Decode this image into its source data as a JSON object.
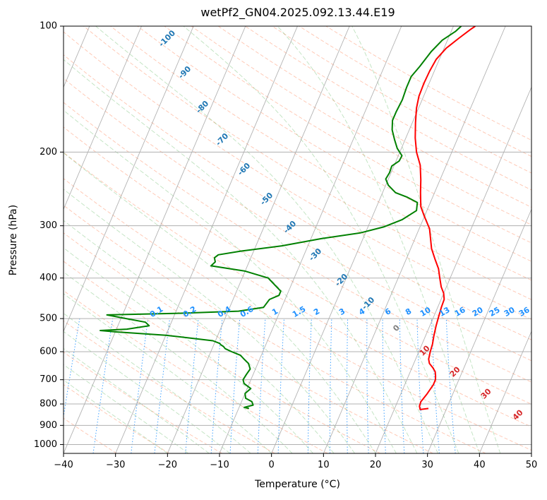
{
  "chart_data": {
    "type": "line",
    "title": "wetPf2_GN04.2025.092.13.44.E19",
    "xlabel": "Temperature (°C)",
    "ylabel": "Pressure (hPa)",
    "xlim": [
      -40,
      50
    ],
    "ylim": [
      1050,
      100
    ],
    "y_scale": "log",
    "x_ticks": [
      -40,
      -30,
      -20,
      -10,
      0,
      10,
      20,
      30,
      40,
      50
    ],
    "y_ticks": [
      100,
      200,
      300,
      400,
      500,
      600,
      700,
      800,
      900,
      1000
    ],
    "grid": true,
    "skew": true,
    "series": [
      {
        "role": "temperature",
        "color": "#ff0000",
        "points": [
          [
            26.5,
            820
          ],
          [
            25.0,
            825
          ],
          [
            24.6,
            810
          ],
          [
            24.5,
            790
          ],
          [
            25.0,
            760
          ],
          [
            25.5,
            720
          ],
          [
            25.5,
            700
          ],
          [
            25.2,
            685
          ],
          [
            24.8,
            670
          ],
          [
            24.0,
            655
          ],
          [
            23.0,
            640
          ],
          [
            22.5,
            625
          ],
          [
            22.2,
            600
          ],
          [
            22.0,
            575
          ],
          [
            21.6,
            550
          ],
          [
            21.2,
            520
          ],
          [
            20.9,
            490
          ],
          [
            20.7,
            470
          ],
          [
            20.6,
            450
          ],
          [
            20.0,
            435
          ],
          [
            19.0,
            420
          ],
          [
            18.0,
            400
          ],
          [
            17.0,
            380
          ],
          [
            15.5,
            360
          ],
          [
            14.0,
            340
          ],
          [
            13.0,
            322
          ],
          [
            12.0,
            305
          ],
          [
            10.0,
            285
          ],
          [
            8.5,
            270
          ],
          [
            7.3,
            250
          ],
          [
            6.3,
            233
          ],
          [
            5.0,
            215
          ],
          [
            3.2,
            200
          ],
          [
            1.8,
            185
          ],
          [
            0.6,
            170
          ],
          [
            -0.4,
            157
          ],
          [
            -0.9,
            147
          ],
          [
            -1.0,
            137
          ],
          [
            -0.9,
            128
          ],
          [
            -0.6,
            120
          ],
          [
            0.4,
            113
          ],
          [
            2.0,
            107
          ],
          [
            3.5,
            102
          ],
          [
            4.2,
            100
          ]
        ]
      },
      {
        "role": "dewpoint",
        "color": "#008000",
        "points": [
          [
            -8.0,
            820
          ],
          [
            -9.0,
            815
          ],
          [
            -7.5,
            805
          ],
          [
            -8.0,
            790
          ],
          [
            -9.5,
            775
          ],
          [
            -10.0,
            755
          ],
          [
            -9.3,
            735
          ],
          [
            -11.0,
            715
          ],
          [
            -11.5,
            700
          ],
          [
            -11.3,
            680
          ],
          [
            -11.0,
            660
          ],
          [
            -11.8,
            640
          ],
          [
            -13.0,
            625
          ],
          [
            -14.0,
            612
          ],
          [
            -16.0,
            600
          ],
          [
            -17.5,
            590
          ],
          [
            -18.0,
            583
          ],
          [
            -18.6,
            578
          ],
          [
            -19.0,
            573
          ],
          [
            -20.5,
            565
          ],
          [
            -30.0,
            548
          ],
          [
            -40.0,
            538
          ],
          [
            -43.0,
            534
          ],
          [
            -38.0,
            530
          ],
          [
            -34.0,
            520
          ],
          [
            -35.0,
            510
          ],
          [
            -39.0,
            500
          ],
          [
            -43.0,
            490
          ],
          [
            -30.0,
            486
          ],
          [
            -18.0,
            480
          ],
          [
            -13.5,
            470
          ],
          [
            -13.0,
            450
          ],
          [
            -11.5,
            440
          ],
          [
            -11.5,
            430
          ],
          [
            -13.0,
            417
          ],
          [
            -15.0,
            400
          ],
          [
            -20.0,
            385
          ],
          [
            -27.0,
            374
          ],
          [
            -26.5,
            366
          ],
          [
            -27.0,
            358
          ],
          [
            -26.5,
            352
          ],
          [
            -22.5,
            345
          ],
          [
            -15.0,
            335
          ],
          [
            -8.0,
            322
          ],
          [
            -1.0,
            312
          ],
          [
            3.0,
            302
          ],
          [
            6.0,
            290
          ],
          [
            8.0,
            276
          ],
          [
            7.5,
            264
          ],
          [
            5.0,
            256
          ],
          [
            2.5,
            250
          ],
          [
            0.5,
            240
          ],
          [
            -0.5,
            232
          ],
          [
            -0.3,
            224
          ],
          [
            -0.4,
            216
          ],
          [
            0.6,
            210
          ],
          [
            0.7,
            204
          ],
          [
            -0.8,
            196
          ],
          [
            -2.0,
            187
          ],
          [
            -3.3,
            177
          ],
          [
            -4.0,
            168
          ],
          [
            -4.0,
            160
          ],
          [
            -3.8,
            150
          ],
          [
            -4.0,
            140
          ],
          [
            -4.0,
            132
          ],
          [
            -3.2,
            125
          ],
          [
            -2.2,
            115
          ],
          [
            -1.0,
            108
          ],
          [
            0.8,
            103
          ],
          [
            1.5,
            100
          ]
        ]
      }
    ],
    "annotations": {
      "dry_adiabat_labels": [
        "-100",
        "-90",
        "-80",
        "-70",
        "-60",
        "-50",
        "-40",
        "-30",
        "-20",
        "-10",
        "0",
        "10",
        "20",
        "30",
        "40"
      ],
      "mixing_ratio_labels": [
        "0.1",
        "0.2",
        "0.4",
        "0.6",
        "1",
        "1.5",
        "2",
        "3",
        "4",
        "6",
        "8",
        "10",
        "13",
        "16",
        "20",
        "25",
        "30",
        "36"
      ]
    },
    "colors": {
      "grid": "#b0b0b0",
      "isotherm": "#9a9a9a",
      "dry_adiabat": "#ff7f50",
      "moist_adiabat": "#2ca02c",
      "mixing_ratio": "#1e90ff",
      "dry_label_cold": "#1f77b4",
      "dry_label_warm": "#d62728",
      "dry_label_zero": "#808080"
    }
  }
}
